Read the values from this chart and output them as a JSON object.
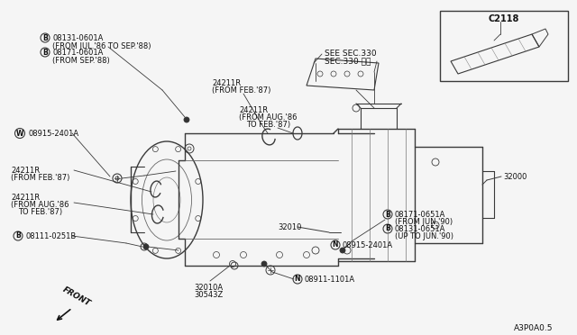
{
  "bg_color": "#f5f5f5",
  "line_color": "#3a3a3a",
  "text_color": "#111111",
  "fig_width": 6.4,
  "fig_height": 3.72,
  "diagram_code": "A3P0A0.5",
  "inset_label": "C2118",
  "see_sec": "SEE SEC.330",
  "see_sec2": "SEC.330 参照",
  "label_b1": "08131-0601A",
  "label_b1b": "(FROM JUL.'86 TO SEP.'88)",
  "label_b2": "08171-0601A",
  "label_b2b": "(FROM SEP.'88)",
  "label_m1": "08915-2401A",
  "label_24211R_a": "24211R",
  "label_24211R_a2": "(FROM FEB.'87)",
  "label_24211R_b": "24211R",
  "label_24211R_b2": "(FROM AUG.'86",
  "label_24211R_b3": "TO FEB.'87)",
  "label_24211R_c": "24211R",
  "label_24211R_c2": "(FROM FEB.'87)",
  "label_24211R_d": "24211R",
  "label_24211R_d2": "(FROM AUG.'86",
  "label_24211R_d3": "TO FEB.'87)",
  "label_b3": "08111-0251B",
  "label_32010A": "32010A",
  "label_30543Z": "30543Z",
  "label_n1": "08911-1101A",
  "label_m2": "08915-2401A",
  "label_b4": "08171-0651A",
  "label_b4b": "(FROM JUN.'90)",
  "label_b5": "08131-0651A",
  "label_b5b": "(UP TO JUN.'90)",
  "label_32010": "32010",
  "label_32000": "32000"
}
